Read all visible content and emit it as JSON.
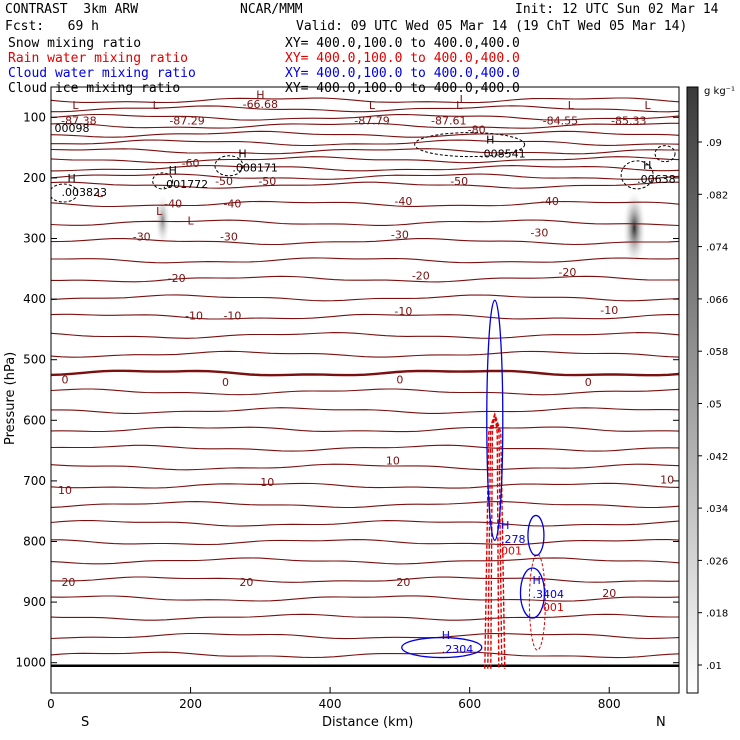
{
  "header": {
    "model": "CONTRAST  3km ARW",
    "org": "NCAR/MMM",
    "init": "Init: 12 UTC Sun 02 Mar 14",
    "fcst": "Fcst:   69 h",
    "valid": "Valid: 09 UTC Wed 05 Mar 14 (19 ChT Wed 05 Mar 14)"
  },
  "fields": [
    {
      "label": "Snow mixing ratio",
      "xy": "XY= 400.0,100.0 to 400.0,400.0",
      "color": "#000000"
    },
    {
      "label": "Rain water mixing ratio",
      "xy": "XY= 400.0,100.0 to 400.0,400.0",
      "color": "#e00000"
    },
    {
      "label": "Cloud water mixing ratio",
      "xy": "XY= 400.0,100.0 to 400.0,400.0",
      "color": "#0000e0"
    },
    {
      "label": "Cloud ice mixing ratio",
      "xy": "XY= 400.0,100.0 to 400.0,400.0",
      "color": "#000000"
    }
  ],
  "chart_data": {
    "type": "contour",
    "xlabel": "Distance (km)",
    "ylabel": "Pressure (hPa)",
    "xlim": [
      0,
      900
    ],
    "ylim": [
      1050,
      50
    ],
    "x_ticks": [
      0,
      200,
      400,
      600,
      800
    ],
    "y_ticks": [
      100,
      200,
      300,
      400,
      500,
      600,
      700,
      800,
      900,
      1000
    ],
    "x_end_labels": {
      "left": "S",
      "right": "N"
    },
    "colorbar": {
      "unit": "g kg⁻¹",
      "ticks": [
        ".09",
        ".082",
        ".074",
        ".066",
        ".058",
        ".05",
        ".042",
        ".034",
        ".026",
        ".018",
        ".01"
      ]
    },
    "temperature_labels": [
      {
        "x": 40,
        "p": 105,
        "v": "-87.38"
      },
      {
        "x": 195,
        "p": 105,
        "v": "-87.29"
      },
      {
        "x": 300,
        "p": 78,
        "v": "-66.68"
      },
      {
        "x": 460,
        "p": 105,
        "v": "-87.79"
      },
      {
        "x": 570,
        "p": 105,
        "v": "-87.61"
      },
      {
        "x": 730,
        "p": 105,
        "v": "-84.55"
      },
      {
        "x": 828,
        "p": 105,
        "v": "-85.33"
      },
      {
        "x": 610,
        "p": 120,
        "v": "-80"
      },
      {
        "x": 200,
        "p": 175,
        "v": "-60"
      },
      {
        "x": 248,
        "p": 205,
        "v": "-50"
      },
      {
        "x": 310,
        "p": 205,
        "v": "-50"
      },
      {
        "x": 585,
        "p": 205,
        "v": "-50"
      },
      {
        "x": 175,
        "p": 242,
        "v": "-40"
      },
      {
        "x": 260,
        "p": 242,
        "v": "-40"
      },
      {
        "x": 505,
        "p": 238,
        "v": "-40"
      },
      {
        "x": 715,
        "p": 238,
        "v": "-40"
      },
      {
        "x": 130,
        "p": 297,
        "v": "-30"
      },
      {
        "x": 255,
        "p": 297,
        "v": "-30"
      },
      {
        "x": 500,
        "p": 293,
        "v": "-30"
      },
      {
        "x": 700,
        "p": 290,
        "v": "-30"
      },
      {
        "x": 180,
        "p": 365,
        "v": "-20"
      },
      {
        "x": 530,
        "p": 361,
        "v": "-20"
      },
      {
        "x": 740,
        "p": 355,
        "v": "-20"
      },
      {
        "x": 205,
        "p": 427,
        "v": "-10"
      },
      {
        "x": 260,
        "p": 427,
        "v": "-10"
      },
      {
        "x": 505,
        "p": 420,
        "v": "-10"
      },
      {
        "x": 800,
        "p": 418,
        "v": "-10"
      },
      {
        "x": 20,
        "p": 533,
        "v": "0"
      },
      {
        "x": 250,
        "p": 537,
        "v": "0"
      },
      {
        "x": 500,
        "p": 533,
        "v": "0"
      },
      {
        "x": 770,
        "p": 537,
        "v": "0"
      },
      {
        "x": 490,
        "p": 666,
        "v": "10"
      },
      {
        "x": 20,
        "p": 715,
        "v": "10"
      },
      {
        "x": 310,
        "p": 702,
        "v": "10"
      },
      {
        "x": 883,
        "p": 698,
        "v": "10"
      },
      {
        "x": 25,
        "p": 867,
        "v": "20"
      },
      {
        "x": 280,
        "p": 867,
        "v": "20"
      },
      {
        "x": 505,
        "p": 867,
        "v": "20"
      },
      {
        "x": 800,
        "p": 885,
        "v": "20"
      }
    ],
    "extrema": [
      {
        "x": 35,
        "p": 80,
        "mark": "L"
      },
      {
        "x": 150,
        "p": 80,
        "mark": "L"
      },
      {
        "x": 300,
        "p": 62,
        "mark": "H"
      },
      {
        "x": 460,
        "p": 80,
        "mark": "L"
      },
      {
        "x": 585,
        "p": 80,
        "mark": "L"
      },
      {
        "x": 745,
        "p": 80,
        "mark": "L"
      },
      {
        "x": 855,
        "p": 80,
        "mark": "L"
      },
      {
        "x": 155,
        "p": 255,
        "mark": "L"
      },
      {
        "x": 590,
        "p": 70,
        "mark": "L"
      },
      {
        "x": 70,
        "p": 225,
        "mark": "L"
      },
      {
        "x": 200,
        "p": 270,
        "mark": "L"
      }
    ],
    "snow_cloudice_extrema": [
      {
        "x": 5,
        "p": 118,
        "mark": "",
        "v": "00098"
      },
      {
        "x": 15,
        "p": 223,
        "mark": "H",
        "v": ".003823"
      },
      {
        "x": 160,
        "p": 210,
        "mark": "H",
        "v": ".001772"
      },
      {
        "x": 260,
        "p": 183,
        "mark": "H",
        "v": ".008171"
      },
      {
        "x": 615,
        "p": 160,
        "mark": "H",
        "v": ".008541"
      },
      {
        "x": 840,
        "p": 202,
        "mark": "H",
        "v": ".00638"
      }
    ],
    "rain_labels": [
      {
        "x": 640,
        "p": 815,
        "v": ".001"
      },
      {
        "x": 700,
        "p": 908,
        "v": ".001"
      }
    ],
    "cloudwater_extrema": [
      {
        "x": 645,
        "p": 796,
        "mark": "H",
        "v": ".278"
      },
      {
        "x": 690,
        "p": 887,
        "mark": "H",
        "v": ".3404"
      },
      {
        "x": 560,
        "p": 977,
        "mark": "H",
        "v": ".2304"
      }
    ],
    "snow_maxima": [
      {
        "x": 160,
        "p": 270,
        "value": 0.03
      },
      {
        "x": 836,
        "p": 283,
        "value": 0.09
      }
    ]
  }
}
